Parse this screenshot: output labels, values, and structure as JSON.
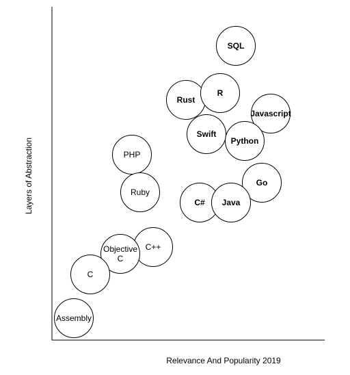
{
  "axes": {
    "y_label": "Layers of Abstraction",
    "x_label": "Relevance And Popularity 2019"
  },
  "nodes": [
    {
      "label": "SQL"
    },
    {
      "label": "Rust"
    },
    {
      "label": "R"
    },
    {
      "label": "Javascript"
    },
    {
      "label": "Swift"
    },
    {
      "label": "Python"
    },
    {
      "label": "PHP"
    },
    {
      "label": "Ruby"
    },
    {
      "label": "Go"
    },
    {
      "label": "C#"
    },
    {
      "label": "Java"
    },
    {
      "label": "C++"
    },
    {
      "label": "Objective C"
    },
    {
      "label": "C"
    },
    {
      "label": "Assembly"
    }
  ]
}
